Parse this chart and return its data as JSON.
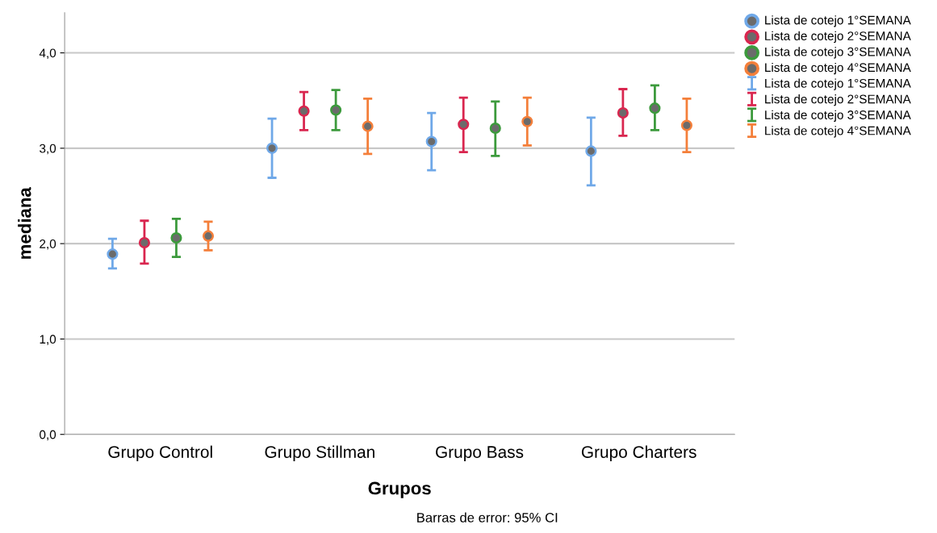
{
  "chart_data": {
    "type": "scatter",
    "xlabel": "Grupos",
    "ylabel": "mediana",
    "categories": [
      "Grupo Control",
      "Grupo Stillman",
      "Grupo Bass",
      "Grupo Charters"
    ],
    "series": [
      {
        "name": "Lista de cotejo 1°SEMANA",
        "color": "#6fa8e8",
        "values": [
          1.89,
          3.0,
          3.07,
          2.97
        ],
        "errors": [
          [
            1.74,
            2.05
          ],
          [
            2.69,
            3.31
          ],
          [
            2.77,
            3.37
          ],
          [
            2.61,
            3.32
          ]
        ]
      },
      {
        "name": "Lista de cotejo 2°SEMANA",
        "color": "#d9264f",
        "values": [
          2.01,
          3.39,
          3.25,
          3.37
        ],
        "errors": [
          [
            1.79,
            2.24
          ],
          [
            3.19,
            3.59
          ],
          [
            2.96,
            3.53
          ],
          [
            3.13,
            3.62
          ]
        ]
      },
      {
        "name": "Lista de cotejo 3°SEMANA",
        "color": "#3c9a3c",
        "values": [
          2.06,
          3.4,
          3.21,
          3.42
        ],
        "errors": [
          [
            1.86,
            2.26
          ],
          [
            3.19,
            3.61
          ],
          [
            2.92,
            3.49
          ],
          [
            3.19,
            3.66
          ]
        ]
      },
      {
        "name": "Lista de cotejo 4°SEMANA",
        "color": "#f47f3a",
        "values": [
          2.08,
          3.23,
          3.28,
          3.24
        ],
        "errors": [
          [
            1.93,
            2.23
          ],
          [
            2.94,
            3.52
          ],
          [
            3.03,
            3.53
          ],
          [
            2.96,
            3.52
          ]
        ]
      }
    ],
    "ylim": [
      0,
      4.42
    ],
    "yticks": [
      {
        "value": 0,
        "label": "0,0"
      },
      {
        "value": 1,
        "label": "1,0"
      },
      {
        "value": 2,
        "label": "2,0"
      },
      {
        "value": 3,
        "label": "3,0"
      },
      {
        "value": 4,
        "label": "4,0"
      }
    ],
    "grid": "y",
    "legend": "top right",
    "marker": "circle",
    "annotations": [
      "Barras de error: 95% CI"
    ]
  }
}
